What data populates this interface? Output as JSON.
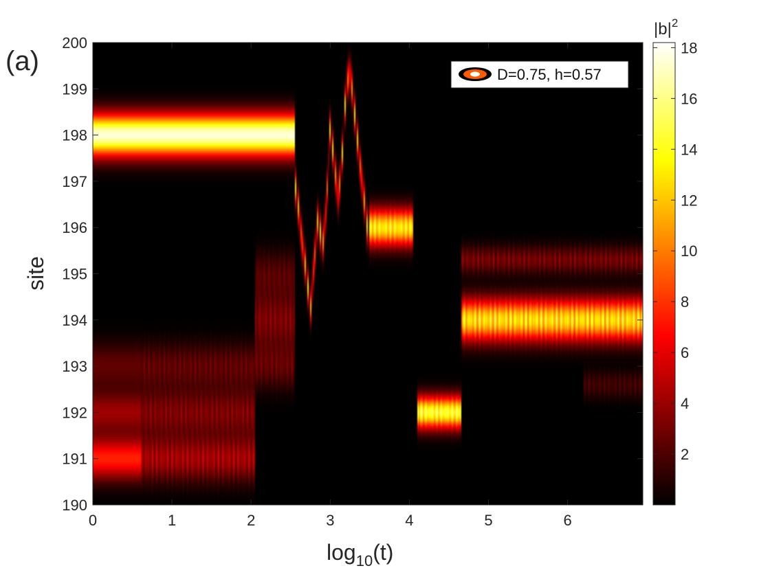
{
  "panel_label": "(a)",
  "chart_data": {
    "type": "heatmap",
    "xlabel_main": "log",
    "xlabel_sub": "10",
    "xlabel_tail": "(t)",
    "ylabel": "site",
    "xlim": [
      0,
      6.95
    ],
    "ylim": [
      190,
      200
    ],
    "x_ticks": [
      0,
      1,
      2,
      3,
      4,
      5,
      6
    ],
    "y_ticks": [
      190,
      191,
      192,
      193,
      194,
      195,
      196,
      197,
      198,
      199,
      200
    ],
    "colorbar": {
      "title_base": "|b|",
      "title_sup": "2",
      "range": [
        0,
        18.2
      ],
      "ticks": [
        2,
        4,
        6,
        8,
        10,
        12,
        14,
        16,
        18
      ],
      "colormap": "hot"
    },
    "legend": {
      "label": "D=0.75, h=0.57",
      "position": "top-right"
    },
    "segments": [
      {
        "t_start": 0.0,
        "t_end": 2.55,
        "site": 198,
        "peak": 17.5,
        "width": 0.45,
        "flicker": 0.0
      },
      {
        "t_start": 0.0,
        "t_end": 0.6,
        "site": 192,
        "peak": 4.0,
        "width": 0.45,
        "flicker": 0.0
      },
      {
        "t_start": 0.0,
        "t_end": 0.6,
        "site": 191,
        "peak": 7.5,
        "width": 0.45,
        "flicker": 0.0
      },
      {
        "t_start": 0.0,
        "t_end": 0.6,
        "site": 193,
        "peak": 2.5,
        "width": 0.5,
        "flicker": 0.0
      },
      {
        "t_start": 0.6,
        "t_end": 2.05,
        "site": 191,
        "peak": 6.0,
        "width": 0.5,
        "flicker": 0.6
      },
      {
        "t_start": 0.6,
        "t_end": 2.05,
        "site": 192,
        "peak": 4.5,
        "width": 0.5,
        "flicker": 0.6
      },
      {
        "t_start": 0.6,
        "t_end": 2.05,
        "site": 193,
        "peak": 3.5,
        "width": 0.5,
        "flicker": 0.6
      },
      {
        "t_start": 2.05,
        "t_end": 2.55,
        "site": 194,
        "peak": 4.5,
        "width": 0.6,
        "flicker": 0.6
      },
      {
        "t_start": 2.05,
        "t_end": 2.55,
        "site": 193,
        "peak": 3.5,
        "width": 0.5,
        "flicker": 0.6
      },
      {
        "t_start": 2.05,
        "t_end": 2.55,
        "site": 195,
        "peak": 3.0,
        "width": 0.5,
        "flicker": 0.6
      },
      {
        "t_start": 3.5,
        "t_end": 4.05,
        "site": 196,
        "peak": 15.0,
        "width": 0.4,
        "flicker": 0.25
      },
      {
        "t_start": 4.1,
        "t_end": 4.65,
        "site": 192,
        "peak": 16.5,
        "width": 0.35,
        "flicker": 0.25
      },
      {
        "t_start": 4.65,
        "t_end": 6.95,
        "site": 194,
        "peak": 15.5,
        "width": 0.45,
        "flicker": 0.35
      },
      {
        "t_start": 4.65,
        "t_end": 6.95,
        "site": 195.3,
        "peak": 4.5,
        "width": 0.3,
        "flicker": 0.7
      },
      {
        "t_start": 6.2,
        "t_end": 6.95,
        "site": 192.6,
        "peak": 2.5,
        "width": 0.3,
        "flicker": 0.7
      }
    ],
    "trajectory": {
      "t": [
        2.55,
        2.6,
        2.65,
        2.7,
        2.75,
        2.8,
        2.85,
        2.9,
        2.95,
        3.0,
        3.05,
        3.1,
        3.15,
        3.2,
        3.25,
        3.3,
        3.35,
        3.4,
        3.45,
        3.5
      ],
      "site": [
        197.0,
        196.4,
        195.6,
        195.0,
        194.2,
        195.3,
        196.3,
        195.5,
        196.4,
        198.2,
        197.4,
        196.6,
        197.5,
        199.0,
        199.4,
        198.6,
        197.8,
        197.0,
        196.3,
        195.5
      ],
      "peak": 13.0
    }
  }
}
